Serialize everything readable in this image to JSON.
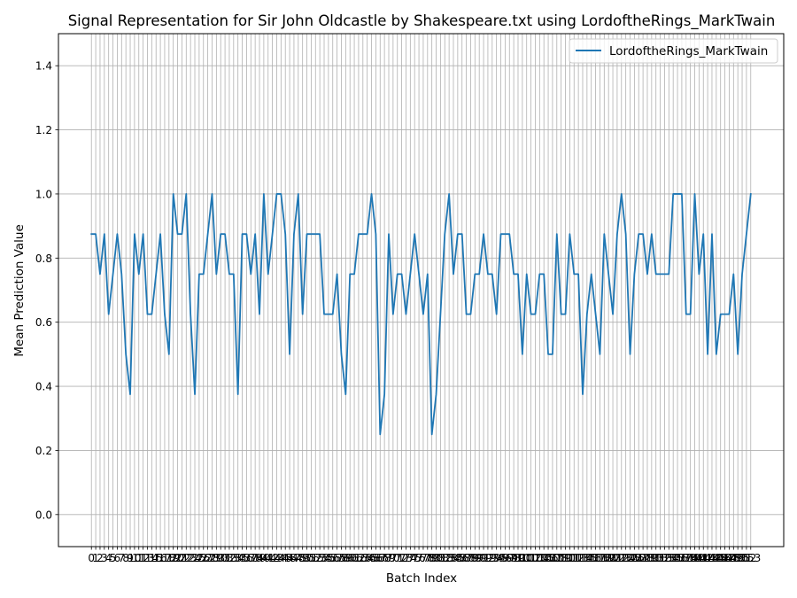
{
  "chart_data": {
    "type": "line",
    "title": "Signal Representation for Sir John Oldcastle by Shakespeare.txt using LordoftheRings_MarkTwain",
    "xlabel": "Batch Index",
    "ylabel": "Mean Prediction Value",
    "ylim": [
      -0.1,
      1.5
    ],
    "yticks": [
      "0.0",
      "0.2",
      "0.4",
      "0.6",
      "0.8",
      "1.0",
      "1.2",
      "1.4"
    ],
    "grid": true,
    "legend_position": "upper right",
    "x": [
      0,
      1,
      2,
      3,
      4,
      5,
      6,
      7,
      8,
      9,
      10,
      11,
      12,
      13,
      14,
      15,
      16,
      17,
      18,
      19,
      20,
      21,
      22,
      23,
      24,
      25,
      26,
      27,
      28,
      29,
      30,
      31,
      32,
      33,
      34,
      35,
      36,
      37,
      38,
      39,
      40,
      41,
      42,
      43,
      44,
      45,
      46,
      47,
      48,
      49,
      50,
      51,
      52,
      53,
      54,
      55,
      56,
      57,
      58,
      59,
      60,
      61,
      62,
      63,
      64,
      65,
      66,
      67,
      68,
      69,
      70,
      71,
      72,
      73,
      74,
      75,
      76,
      77,
      78,
      79,
      80,
      81,
      82,
      83,
      84,
      85,
      86,
      87,
      88,
      89,
      90,
      91,
      92,
      93,
      94,
      95,
      96,
      97,
      98,
      99,
      100,
      101,
      102,
      103,
      104,
      105,
      106,
      107,
      108,
      109,
      110,
      111,
      112,
      113,
      114,
      115,
      116,
      117,
      118,
      119,
      120,
      121,
      122,
      123,
      124,
      125,
      126,
      127,
      128,
      129,
      130,
      131,
      132,
      133,
      134,
      135,
      136,
      137,
      138,
      139,
      140,
      141,
      142,
      143,
      144,
      145,
      146,
      147,
      148,
      149,
      150,
      151,
      152,
      153
    ],
    "series": [
      {
        "name": "LordoftheRings_MarkTwain",
        "color": "#1f77b4",
        "values": [
          0.875,
          0.875,
          0.75,
          0.875,
          0.625,
          0.75,
          0.875,
          0.75,
          0.5,
          0.375,
          0.875,
          0.75,
          0.875,
          0.625,
          0.625,
          0.75,
          0.875,
          0.625,
          0.5,
          1.0,
          0.875,
          0.875,
          1.0,
          0.625,
          0.375,
          0.75,
          0.75,
          0.875,
          1.0,
          0.75,
          0.875,
          0.875,
          0.75,
          0.75,
          0.375,
          0.875,
          0.875,
          0.75,
          0.875,
          0.625,
          1.0,
          0.75,
          0.875,
          1.0,
          1.0,
          0.875,
          0.5,
          0.875,
          1.0,
          0.625,
          0.875,
          0.875,
          0.875,
          0.875,
          0.625,
          0.625,
          0.625,
          0.75,
          0.5,
          0.375,
          0.75,
          0.75,
          0.875,
          0.875,
          0.875,
          1.0,
          0.875,
          0.25,
          0.375,
          0.875,
          0.625,
          0.75,
          0.75,
          0.625,
          0.75,
          0.875,
          0.75,
          0.625,
          0.75,
          0.25,
          0.375,
          0.625,
          0.875,
          1.0,
          0.75,
          0.875,
          0.875,
          0.625,
          0.625,
          0.75,
          0.75,
          0.875,
          0.75,
          0.75,
          0.625,
          0.875,
          0.875,
          0.875,
          0.75,
          0.75,
          0.5,
          0.75,
          0.625,
          0.625,
          0.75,
          0.75,
          0.5,
          0.5,
          0.875,
          0.625,
          0.625,
          0.875,
          0.75,
          0.75,
          0.375,
          0.625,
          0.75,
          0.625,
          0.5,
          0.875,
          0.75,
          0.625,
          0.875,
          1.0,
          0.875,
          0.5,
          0.75,
          0.875,
          0.875,
          0.75,
          0.875,
          0.75,
          0.75,
          0.75,
          0.75,
          1.0,
          1.0,
          1.0,
          0.625,
          0.625,
          1.0,
          0.75,
          0.875,
          0.5,
          0.875,
          0.5,
          0.625,
          0.625,
          0.625,
          0.75,
          0.5,
          0.75,
          0.875,
          1.0
        ]
      }
    ]
  }
}
